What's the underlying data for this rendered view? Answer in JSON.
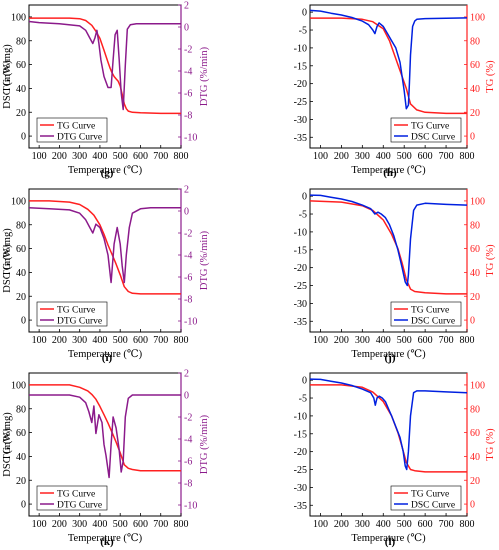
{
  "chart_data": [
    {
      "id": "g",
      "label": "(g)",
      "type": "line",
      "xlabel": "Temperature (℃)",
      "xlim": [
        50,
        800
      ],
      "xticks": [
        100,
        200,
        300,
        400,
        500,
        600,
        700,
        800
      ],
      "left_axis": {
        "label": "TG (%)",
        "ylim": [
          -10,
          110
        ],
        "ticks": [
          0,
          20,
          40,
          60,
          80,
          100
        ],
        "color": "#000000"
      },
      "right_axis": {
        "label": "DTG (%/min)",
        "ylim": [
          -11,
          2
        ],
        "ticks": [
          2,
          0,
          -2,
          -4,
          -6,
          -8,
          -10
        ],
        "color": "#8b1a8b"
      },
      "legend_position": "bottom-left",
      "series": [
        {
          "name": "TG Curve",
          "axis": "left",
          "color": "#ff2020",
          "x": [
            50,
            150,
            250,
            300,
            330,
            360,
            380,
            400,
            420,
            440,
            450,
            460,
            470,
            480,
            490,
            500,
            510,
            520,
            530,
            540,
            560,
            600,
            700,
            800
          ],
          "y": [
            99,
            99,
            99,
            98.5,
            97,
            93,
            88,
            82,
            72,
            62,
            57,
            53,
            50,
            48,
            46,
            42,
            35,
            27,
            23,
            21,
            20,
            19.5,
            19,
            19
          ]
        },
        {
          "name": "DTG Curve",
          "axis": "right",
          "color": "#8b1a8b",
          "x": [
            50,
            100,
            200,
            300,
            330,
            350,
            365,
            375,
            385,
            395,
            405,
            420,
            440,
            455,
            465,
            475,
            485,
            495,
            505,
            515,
            525,
            535,
            550,
            580,
            650,
            800
          ],
          "y": [
            0.5,
            0.4,
            0.3,
            0.1,
            -0.3,
            -1.0,
            -1.5,
            -1.0,
            -0.3,
            -1.5,
            -3.0,
            -4.5,
            -5.5,
            -5.5,
            -3.0,
            -0.7,
            -0.3,
            -3.0,
            -6.0,
            -7.5,
            -3.5,
            -0.2,
            0.2,
            0.3,
            0.3,
            0.3
          ]
        }
      ]
    },
    {
      "id": "h",
      "label": "(h)",
      "type": "line",
      "xlabel": "Temperature (℃)",
      "xlim": [
        50,
        800
      ],
      "xticks": [
        100,
        200,
        300,
        400,
        500,
        600,
        700,
        800
      ],
      "left_axis": {
        "label": "DSC (mW/mg)",
        "ylim": [
          -38,
          2
        ],
        "ticks": [
          0,
          -5,
          -10,
          -15,
          -20,
          -25,
          -30,
          -35
        ],
        "color": "#000000"
      },
      "right_axis": {
        "label": "TG (%)",
        "ylim": [
          -10,
          110
        ],
        "ticks": [
          0,
          20,
          40,
          60,
          80,
          100
        ],
        "color": "#ff2020"
      },
      "legend_position": "bottom-right",
      "series": [
        {
          "name": "TG Curve",
          "axis": "right",
          "color": "#ff2020",
          "x": [
            50,
            200,
            300,
            350,
            400,
            430,
            450,
            470,
            490,
            510,
            530,
            560,
            600,
            700,
            800
          ],
          "y": [
            99,
            99,
            98,
            96,
            90,
            80,
            70,
            60,
            50,
            40,
            27,
            22,
            20,
            19,
            19
          ]
        },
        {
          "name": "DSC Curve",
          "axis": "left",
          "color": "#0020e0",
          "x": [
            50,
            100,
            150,
            200,
            250,
            300,
            330,
            350,
            360,
            370,
            380,
            400,
            420,
            440,
            460,
            480,
            500,
            510,
            520,
            525,
            530,
            540,
            550,
            560,
            600,
            700,
            800
          ],
          "y": [
            0.5,
            0.3,
            -0.3,
            -0.8,
            -1.5,
            -2.5,
            -3.5,
            -5,
            -6,
            -4,
            -3,
            -4,
            -6,
            -8,
            -10,
            -14,
            -22,
            -27,
            -26,
            -20,
            -12,
            -4,
            -2.5,
            -2,
            -1.8,
            -1.7,
            -1.6
          ]
        }
      ]
    },
    {
      "id": "i",
      "label": "(i)",
      "type": "line",
      "xlabel": "Temperature (℃)",
      "xlim": [
        50,
        800
      ],
      "xticks": [
        100,
        200,
        300,
        400,
        500,
        600,
        700,
        800
      ],
      "left_axis": {
        "label": "TG (%)",
        "ylim": [
          -10,
          110
        ],
        "ticks": [
          0,
          20,
          40,
          60,
          80,
          100
        ],
        "color": "#000000"
      },
      "right_axis": {
        "label": "DTG (%/min)",
        "ylim": [
          -11,
          2
        ],
        "ticks": [
          2,
          0,
          -2,
          -4,
          -6,
          -8,
          -10
        ],
        "color": "#8b1a8b"
      },
      "legend_position": "bottom-left",
      "series": [
        {
          "name": "TG Curve",
          "axis": "left",
          "color": "#ff2020",
          "x": [
            50,
            150,
            250,
            300,
            340,
            370,
            400,
            420,
            440,
            460,
            480,
            500,
            520,
            540,
            560,
            600,
            700,
            800
          ],
          "y": [
            100,
            100,
            99,
            97,
            93,
            88,
            80,
            72,
            63,
            55,
            47,
            38,
            28,
            24,
            22.5,
            22,
            22,
            22
          ]
        },
        {
          "name": "DTG Curve",
          "axis": "right",
          "color": "#8b1a8b",
          "x": [
            50,
            150,
            250,
            300,
            330,
            350,
            365,
            380,
            400,
            420,
            440,
            455,
            470,
            485,
            500,
            510,
            520,
            530,
            545,
            560,
            600,
            650,
            800
          ],
          "y": [
            0.3,
            0.2,
            0.1,
            -0.2,
            -0.8,
            -1.5,
            -2,
            -1.2,
            -1.5,
            -2.5,
            -4,
            -6.5,
            -3,
            -1.5,
            -3,
            -5,
            -6.5,
            -4,
            -1.5,
            -0.2,
            0.2,
            0.3,
            0.3
          ]
        }
      ]
    },
    {
      "id": "j",
      "label": "(j)",
      "type": "line",
      "xlabel": "Temperature (℃)",
      "xlim": [
        50,
        800
      ],
      "xticks": [
        100,
        200,
        300,
        400,
        500,
        600,
        700,
        800
      ],
      "left_axis": {
        "label": "DSC (mW/mg)",
        "ylim": [
          -38,
          2
        ],
        "ticks": [
          0,
          -5,
          -10,
          -15,
          -20,
          -25,
          -30,
          -35
        ],
        "color": "#000000"
      },
      "right_axis": {
        "label": "TG (%)",
        "ylim": [
          -10,
          110
        ],
        "ticks": [
          0,
          20,
          40,
          60,
          80,
          100
        ],
        "color": "#ff2020"
      },
      "legend_position": "bottom-right",
      "series": [
        {
          "name": "TG Curve",
          "axis": "right",
          "color": "#ff2020",
          "x": [
            50,
            200,
            300,
            350,
            400,
            440,
            470,
            490,
            510,
            530,
            550,
            600,
            700,
            800
          ],
          "y": [
            100,
            99,
            96,
            92,
            84,
            72,
            60,
            48,
            34,
            26,
            24,
            23,
            22,
            22
          ]
        },
        {
          "name": "DSC Curve",
          "axis": "left",
          "color": "#0020e0",
          "x": [
            50,
            100,
            150,
            200,
            250,
            300,
            340,
            360,
            375,
            390,
            410,
            430,
            450,
            470,
            490,
            505,
            515,
            520,
            530,
            545,
            560,
            600,
            700,
            800
          ],
          "y": [
            0.3,
            0.2,
            -0.3,
            -0.8,
            -1.5,
            -2.5,
            -3.5,
            -5,
            -4.5,
            -5,
            -6,
            -8,
            -11,
            -15,
            -20,
            -24,
            -25,
            -22,
            -12,
            -4,
            -2.5,
            -2,
            -2.3,
            -2.5
          ]
        }
      ]
    },
    {
      "id": "k",
      "label": "(k)",
      "type": "line",
      "xlabel": "Temperature (℃)",
      "xlim": [
        50,
        800
      ],
      "xticks": [
        100,
        200,
        300,
        400,
        500,
        600,
        700,
        800
      ],
      "left_axis": {
        "label": "TG (%)",
        "ylim": [
          -10,
          110
        ],
        "ticks": [
          0,
          20,
          40,
          60,
          80,
          100
        ],
        "color": "#000000"
      },
      "right_axis": {
        "label": "DTG (%/min)",
        "ylim": [
          -11,
          2
        ],
        "ticks": [
          2,
          0,
          -2,
          -4,
          -6,
          -8,
          -10
        ],
        "color": "#8b1a8b"
      },
      "legend_position": "bottom-left",
      "series": [
        {
          "name": "TG Curve",
          "axis": "left",
          "color": "#ff2020",
          "x": [
            50,
            150,
            250,
            300,
            340,
            360,
            380,
            400,
            420,
            440,
            460,
            480,
            500,
            520,
            540,
            560,
            600,
            700,
            800
          ],
          "y": [
            100,
            100,
            100,
            98,
            95,
            92,
            88,
            82,
            75,
            68,
            60,
            52,
            43,
            33,
            30,
            29,
            28,
            28,
            28
          ]
        },
        {
          "name": "DTG Curve",
          "axis": "right",
          "color": "#8b1a8b",
          "x": [
            50,
            150,
            250,
            300,
            330,
            345,
            360,
            370,
            380,
            395,
            410,
            420,
            430,
            445,
            455,
            465,
            480,
            495,
            505,
            515,
            525,
            540,
            560,
            600,
            700,
            800
          ],
          "y": [
            0,
            0,
            0,
            -0.2,
            -0.7,
            -1.5,
            -2.5,
            -1.0,
            -3.5,
            -1.8,
            -2.5,
            -4.5,
            -5.5,
            -7.5,
            -4.5,
            -2.0,
            -3.0,
            -5.0,
            -7.0,
            -6.0,
            -2.0,
            -0.3,
            0,
            0,
            0,
            0
          ]
        }
      ]
    },
    {
      "id": "l",
      "label": "(l)",
      "type": "line",
      "xlabel": "Temperature (℃)",
      "xlim": [
        50,
        800
      ],
      "xticks": [
        100,
        200,
        300,
        400,
        500,
        600,
        700,
        800
      ],
      "left_axis": {
        "label": "DSC (mW/mg)",
        "ylim": [
          -38,
          2
        ],
        "ticks": [
          0,
          -5,
          -10,
          -15,
          -20,
          -25,
          -30,
          -35
        ],
        "color": "#000000"
      },
      "right_axis": {
        "label": "TG (%)",
        "ylim": [
          -10,
          110
        ],
        "ticks": [
          0,
          20,
          40,
          60,
          80,
          100
        ],
        "color": "#ff2020"
      },
      "legend_position": "bottom-right",
      "series": [
        {
          "name": "TG Curve",
          "axis": "right",
          "color": "#ff2020",
          "x": [
            50,
            200,
            300,
            350,
            400,
            440,
            470,
            490,
            510,
            530,
            550,
            600,
            700,
            800
          ],
          "y": [
            100,
            100,
            98,
            94,
            86,
            74,
            60,
            48,
            35,
            29,
            28,
            27,
            27,
            27
          ]
        },
        {
          "name": "DSC Curve",
          "axis": "left",
          "color": "#0020e0",
          "x": [
            50,
            100,
            150,
            200,
            250,
            300,
            340,
            355,
            362,
            370,
            380,
            395,
            410,
            425,
            440,
            460,
            480,
            495,
            505,
            512,
            520,
            530,
            545,
            560,
            600,
            700,
            800
          ],
          "y": [
            0.3,
            0.2,
            -0.3,
            -0.8,
            -1.5,
            -2.5,
            -3.5,
            -5,
            -7,
            -5,
            -4.5,
            -5,
            -6,
            -8,
            -10,
            -13,
            -16,
            -20,
            -24,
            -25,
            -20,
            -10,
            -3.5,
            -3,
            -3,
            -3.3,
            -3.5
          ]
        }
      ]
    }
  ]
}
